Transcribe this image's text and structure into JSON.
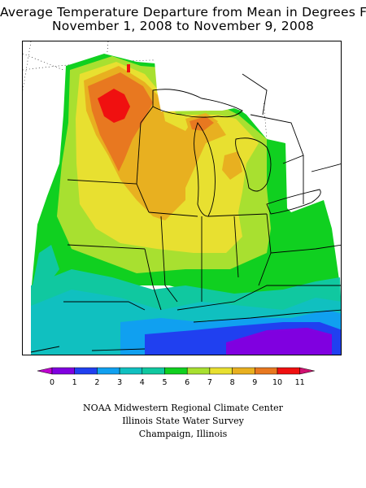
{
  "title": {
    "line1": "Average Temperature Departure from Mean in Degrees F",
    "line2": "November 1, 2008 to November 9, 2008"
  },
  "legend": {
    "values": [
      "0",
      "1",
      "2",
      "3",
      "4",
      "5",
      "6",
      "7",
      "8",
      "9",
      "10",
      "11"
    ],
    "colors": [
      "#c000d0",
      "#8000e0",
      "#2040f0",
      "#10a0f0",
      "#10c0c0",
      "#10c8a0",
      "#10d020",
      "#a8e030",
      "#e8e030",
      "#e8b020",
      "#e87820",
      "#f01010",
      "#d01070"
    ]
  },
  "credits": {
    "line1": "NOAA Midwestern Regional Climate Center",
    "line2": "Illinois State Water Survey",
    "line3": "Champaign, Illinois"
  }
}
